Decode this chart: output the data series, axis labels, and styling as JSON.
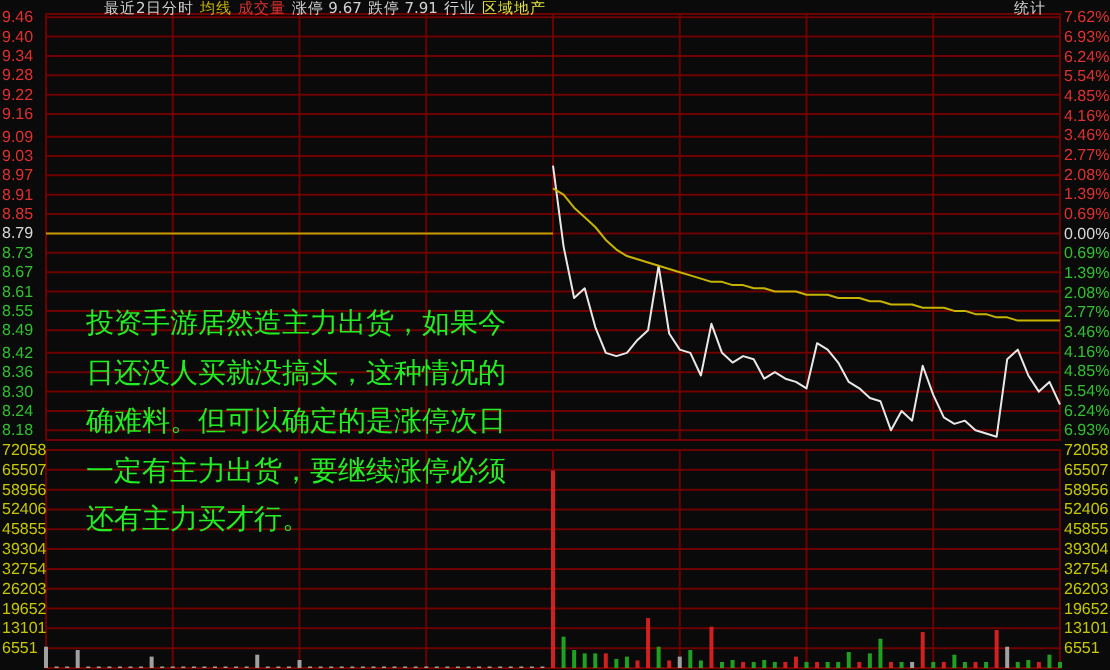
{
  "chart_data": [
    {
      "type": "line",
      "title": "最近2日分时",
      "grid": true,
      "categories": [
        null,
        null,
        null,
        null,
        null,
        null,
        null,
        null,
        null,
        null,
        null,
        null,
        null,
        null,
        null,
        null,
        null,
        null,
        null,
        null,
        null,
        null,
        null,
        null,
        null,
        null,
        null,
        null,
        null,
        null,
        null,
        null,
        null,
        null,
        null,
        null,
        null,
        null,
        null,
        null,
        null,
        null,
        null,
        null,
        null,
        null,
        null,
        null,
        null,
        null,
        null,
        null,
        null,
        null,
        null,
        null,
        null,
        null,
        null,
        null,
        null,
        null,
        null,
        null,
        null,
        null,
        null,
        null,
        null,
        null,
        null,
        null,
        null,
        null,
        null,
        null,
        null,
        null,
        null,
        null,
        null,
        null,
        null,
        null,
        null,
        null,
        null,
        null,
        null,
        null,
        null,
        null,
        null,
        null,
        null,
        null,
        null
      ],
      "ylim": [
        8.15,
        9.47
      ],
      "yticks": [
        9.46,
        {
          "value": 9.4,
          "label": "9.40"
        },
        9.34,
        9.28,
        9.22,
        9.16,
        9.09,
        9.03,
        8.97,
        8.91,
        8.85,
        8.79,
        8.73,
        8.67,
        8.61,
        8.55,
        8.49,
        8.42,
        8.36,
        {
          "value": 8.3,
          "label": "8.30"
        },
        8.24,
        8.18
      ],
      "y2lim": [
        -7.28,
        7.74
      ],
      "y2ticks": [
        {
          "value": 7.62,
          "label": "7.62%"
        },
        {
          "value": 6.93,
          "label": "6.93%"
        },
        {
          "value": 6.24,
          "label": "6.24%"
        },
        {
          "value": 5.54,
          "label": "5.54%"
        },
        {
          "value": 4.85,
          "label": "4.85%"
        },
        {
          "value": 4.16,
          "label": "4.16%"
        },
        {
          "value": 3.46,
          "label": "3.46%"
        },
        {
          "value": 2.77,
          "label": "2.77%"
        },
        {
          "value": 2.08,
          "label": "2.08%"
        },
        {
          "value": 1.39,
          "label": "1.39%"
        },
        {
          "value": 0.69,
          "label": "0.69%"
        },
        {
          "value": 0,
          "label": "0.00%"
        },
        {
          "value": -0.69,
          "label": "0.69%"
        },
        {
          "value": -1.39,
          "label": "1.39%"
        },
        {
          "value": -2.08,
          "label": "2.08%"
        },
        {
          "value": -2.77,
          "label": "2.77%"
        },
        {
          "value": -3.46,
          "label": "3.46%"
        },
        {
          "value": -4.16,
          "label": "4.16%"
        },
        {
          "value": -4.85,
          "label": "4.85%"
        },
        {
          "value": -5.54,
          "label": "5.54%"
        },
        {
          "value": -6.24,
          "label": "6.24%"
        },
        {
          "value": -6.93,
          "label": "6.93%"
        }
      ],
      "series": [
        {
          "color": "#b8a000",
          "values": [
            8.79,
            8.79,
            8.79,
            8.79,
            8.79,
            8.79,
            8.79,
            8.79,
            8.79,
            8.79,
            8.79,
            8.79,
            8.79,
            8.79,
            8.79,
            8.79,
            8.79,
            8.79,
            8.79,
            8.79,
            8.79,
            8.79,
            8.79,
            8.79,
            8.79,
            8.79,
            8.79,
            8.79,
            8.79,
            8.79,
            8.79,
            8.79,
            8.79,
            8.79,
            8.79,
            8.79,
            8.79,
            8.79,
            8.79,
            8.79,
            8.79,
            8.79,
            8.79,
            8.79,
            8.79,
            8.79,
            8.79,
            8.79,
            8.79,
            null,
            null,
            null,
            null,
            null,
            null,
            null,
            null,
            null,
            null,
            null,
            null,
            null,
            null,
            null,
            null,
            null,
            null,
            null,
            null,
            null,
            null,
            null,
            null,
            null,
            null,
            null,
            null,
            null,
            null,
            null,
            null,
            null,
            null,
            null,
            null,
            null,
            null,
            null,
            null,
            null,
            null,
            null,
            null,
            null,
            null,
            null,
            null
          ]
        },
        {
          "color": "#e8e8e8",
          "values": [
            null,
            null,
            null,
            null,
            null,
            null,
            null,
            null,
            null,
            null,
            null,
            null,
            null,
            null,
            null,
            null,
            null,
            null,
            null,
            null,
            null,
            null,
            null,
            null,
            null,
            null,
            null,
            null,
            null,
            null,
            null,
            null,
            null,
            null,
            null,
            null,
            null,
            null,
            null,
            null,
            null,
            null,
            null,
            null,
            null,
            null,
            null,
            null,
            9.0,
            8.75,
            8.59,
            8.62,
            8.5,
            8.42,
            8.41,
            8.42,
            8.46,
            8.49,
            8.69,
            8.48,
            8.43,
            8.42,
            8.35,
            8.51,
            8.42,
            8.39,
            8.41,
            8.4,
            8.34,
            8.36,
            8.34,
            8.33,
            8.31,
            8.45,
            8.43,
            8.39,
            8.33,
            8.31,
            8.28,
            8.27,
            8.18,
            8.24,
            8.21,
            8.38,
            8.29,
            8.22,
            8.2,
            8.21,
            8.18,
            8.17,
            8.16,
            8.4,
            8.43,
            8.35,
            8.3,
            8.33,
            8.26
          ]
        },
        {
          "name": "均线",
          "color": "#c8b400",
          "values": [
            null,
            null,
            null,
            null,
            null,
            null,
            null,
            null,
            null,
            null,
            null,
            null,
            null,
            null,
            null,
            null,
            null,
            null,
            null,
            null,
            null,
            null,
            null,
            null,
            null,
            null,
            null,
            null,
            null,
            null,
            null,
            null,
            null,
            null,
            null,
            null,
            null,
            null,
            null,
            null,
            null,
            null,
            null,
            null,
            null,
            null,
            null,
            null,
            8.93,
            8.91,
            8.87,
            8.84,
            8.81,
            8.77,
            8.74,
            8.72,
            8.71,
            8.7,
            8.69,
            8.68,
            8.67,
            8.66,
            8.65,
            8.64,
            8.64,
            8.63,
            8.63,
            8.62,
            8.62,
            8.61,
            8.61,
            8.61,
            8.6,
            8.6,
            8.6,
            8.59,
            8.59,
            8.59,
            8.58,
            8.58,
            8.57,
            8.57,
            8.57,
            8.56,
            8.56,
            8.56,
            8.55,
            8.55,
            8.54,
            8.54,
            8.53,
            8.53,
            8.52,
            8.52,
            8.52,
            8.52,
            8.52
          ]
        }
      ],
      "annotations": [
        "涨停 9.67",
        "跌停 7.91",
        "行业",
        "区域地产",
        "统计",
        "投资手游居然造主力出货，如果今日还没人买就没搞头，这种情况的确难料。但可以确定的是涨停次日一定有主力出货，要继续涨停必须还有主力买才行。"
      ]
    },
    {
      "type": "bar",
      "grid": true,
      "categories": [
        null,
        null,
        null,
        null,
        null,
        null,
        null,
        null,
        null,
        null,
        null,
        null,
        null,
        null,
        null,
        null,
        null,
        null,
        null,
        null,
        null,
        null,
        null,
        null,
        null,
        null,
        null,
        null,
        null,
        null,
        null,
        null,
        null,
        null,
        null,
        null,
        null,
        null,
        null,
        null,
        null,
        null,
        null,
        null,
        null,
        null,
        null,
        null,
        null,
        null,
        null,
        null,
        null,
        null,
        null,
        null,
        null,
        null,
        null,
        null,
        null,
        null,
        null,
        null,
        null,
        null,
        null,
        null,
        null,
        null,
        null,
        null,
        null,
        null,
        null,
        null,
        null,
        null,
        null,
        null,
        null,
        null,
        null,
        null,
        null,
        null,
        null,
        null,
        null,
        null,
        null,
        null,
        null,
        null,
        null,
        null,
        null
      ],
      "ylim": [
        0,
        72058
      ],
      "yticks": [
        72058,
        65507,
        58956,
        52406,
        45855,
        39304,
        32754,
        26203,
        19652,
        13101,
        6551
      ],
      "y2lim": [
        0,
        72058
      ],
      "y2ticks": [
        72058,
        65507,
        58956,
        52406,
        45855,
        39304,
        32754,
        26203,
        19652,
        13101,
        6551
      ],
      "series": [
        {
          "name": "成交量",
          "values": [
            7040,
            500,
            500,
            5940,
            500,
            500,
            500,
            500,
            500,
            500,
            3760,
            500,
            500,
            500,
            500,
            500,
            500,
            500,
            500,
            500,
            4400,
            500,
            500,
            500,
            2640,
            500,
            500,
            500,
            500,
            500,
            500,
            500,
            500,
            500,
            500,
            500,
            500,
            500,
            500,
            500,
            500,
            500,
            500,
            500,
            500,
            500,
            500,
            500,
            65300,
            10360,
            5940,
            4840,
            4840,
            4840,
            3000,
            3760,
            2500,
            16500,
            7040,
            2500,
            3760,
            5940,
            2500,
            13660,
            2000,
            2640,
            2000,
            2000,
            2640,
            2000,
            2000,
            3760,
            2000,
            2000,
            2000,
            2000,
            5280,
            2000,
            4840,
            9680,
            2000,
            2000,
            2000,
            11880,
            2000,
            2000,
            4400,
            2000,
            2000,
            2000,
            12540,
            7040,
            2000,
            2640,
            2000,
            4400,
            2000
          ],
          "colors": [
            "#a0a0a0",
            "#a0a0a0",
            "#a0a0a0",
            "#a0a0a0",
            "#a0a0a0",
            "#a0a0a0",
            "#a0a0a0",
            "#a0a0a0",
            "#a0a0a0",
            "#a0a0a0",
            "#a0a0a0",
            "#a0a0a0",
            "#a0a0a0",
            "#a0a0a0",
            "#a0a0a0",
            "#a0a0a0",
            "#a0a0a0",
            "#a0a0a0",
            "#a0a0a0",
            "#a0a0a0",
            "#a0a0a0",
            "#a0a0a0",
            "#a0a0a0",
            "#a0a0a0",
            "#a0a0a0",
            "#a0a0a0",
            "#a0a0a0",
            "#a0a0a0",
            "#a0a0a0",
            "#a0a0a0",
            "#a0a0a0",
            "#a0a0a0",
            "#a0a0a0",
            "#a0a0a0",
            "#a0a0a0",
            "#a0a0a0",
            "#a0a0a0",
            "#a0a0a0",
            "#a0a0a0",
            "#a0a0a0",
            "#a0a0a0",
            "#a0a0a0",
            "#a0a0a0",
            "#a0a0a0",
            "#a0a0a0",
            "#a0a0a0",
            "#a0a0a0",
            "#a0a0a0",
            "#d02020",
            "#20a020",
            "#20a020",
            "#20a020",
            "#20a020",
            "#d02020",
            "#20a020",
            "#20a020",
            "#d02020",
            "#d02020",
            "#20a020",
            "#d02020",
            "#a0a0a0",
            "#20a020",
            "#20a020",
            "#d02020",
            "#20a020",
            "#20a020",
            "#d02020",
            "#20a020",
            "#20a020",
            "#20a020",
            "#d02020",
            "#d02020",
            "#20a020",
            "#d02020",
            "#20a020",
            "#20a020",
            "#20a020",
            "#d02020",
            "#20a020",
            "#20a020",
            "#d02020",
            "#20a020",
            "#a0a0a0",
            "#d02020",
            "#20a020",
            "#d02020",
            "#20a020",
            "#20a020",
            "#d02020",
            "#20a020",
            "#d02020",
            "#a0a0a0",
            "#20a020",
            "#20a020",
            "#d02020",
            "#20a020",
            "#20a020"
          ]
        }
      ]
    }
  ]
}
